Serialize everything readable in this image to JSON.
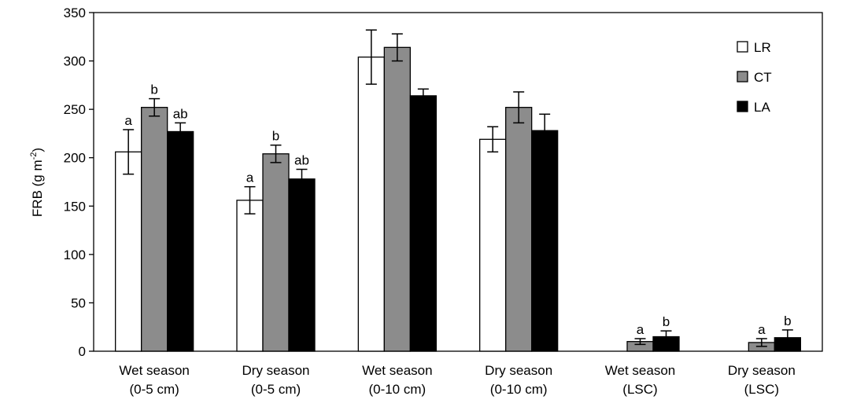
{
  "chart_data": {
    "type": "bar",
    "ylabel": "FRB (g m",
    "ylabel_sup": "-2",
    "ylabel_close": ")",
    "ylim": [
      0,
      350
    ],
    "yticks": [
      0,
      50,
      100,
      150,
      200,
      250,
      300,
      350
    ],
    "grid": false,
    "legend_position": "top-right",
    "categories": [
      [
        "Wet season",
        "(0-5 cm)"
      ],
      [
        "Dry season",
        "(0-5 cm)"
      ],
      [
        "Wet season",
        "(0-10 cm)"
      ],
      [
        "Dry season",
        "(0-10 cm)"
      ],
      [
        "Wet season",
        "(LSC)"
      ],
      [
        "Dry season",
        "(LSC)"
      ]
    ],
    "series": [
      {
        "name": "LR",
        "color": "#ffffff",
        "values": [
          206,
          156,
          304,
          219,
          null,
          null
        ],
        "errors": [
          23,
          14,
          28,
          13,
          null,
          null
        ],
        "labels": [
          "a",
          "a",
          "",
          "",
          "",
          ""
        ]
      },
      {
        "name": "CT",
        "color": "#8c8c8c",
        "values": [
          252,
          204,
          314,
          252,
          10,
          9
        ],
        "errors": [
          9,
          9,
          14,
          16,
          3,
          4
        ],
        "labels": [
          "b",
          "b",
          "",
          "",
          "a",
          "a"
        ]
      },
      {
        "name": "LA",
        "color": "#000000",
        "values": [
          227,
          178,
          264,
          228,
          15,
          14
        ],
        "errors": [
          9,
          10,
          7,
          17,
          6,
          8
        ],
        "labels": [
          "ab",
          "ab",
          "",
          "",
          "b",
          "b"
        ]
      }
    ]
  }
}
